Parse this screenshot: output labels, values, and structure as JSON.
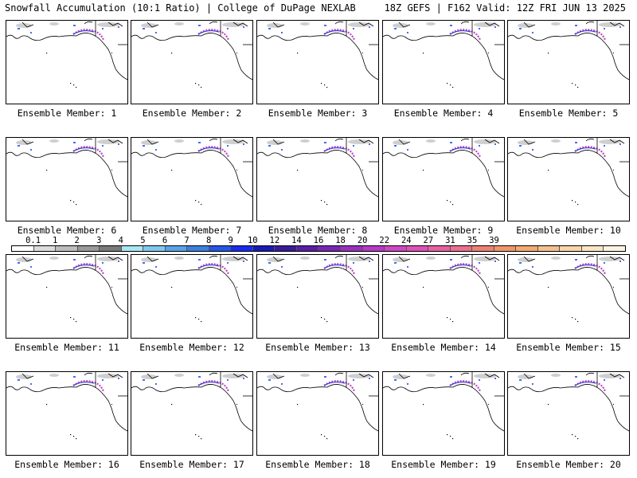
{
  "header": {
    "left": "Snowfall Accumulation (10:1 Ratio) | College of DuPage NEXLAB",
    "right": "18Z GEFS | F162 Valid: 12Z FRI JUN 13 2025"
  },
  "members": [
    {
      "label": "Ensemble Member: 1"
    },
    {
      "label": "Ensemble Member: 2"
    },
    {
      "label": "Ensemble Member: 3"
    },
    {
      "label": "Ensemble Member: 4"
    },
    {
      "label": "Ensemble Member: 5"
    },
    {
      "label": "Ensemble Member: 6"
    },
    {
      "label": "Ensemble Member: 7"
    },
    {
      "label": "Ensemble Member: 8"
    },
    {
      "label": "Ensemble Member: 9"
    },
    {
      "label": "Ensemble Member: 10"
    },
    {
      "label": "Ensemble Member: 11"
    },
    {
      "label": "Ensemble Member: 12"
    },
    {
      "label": "Ensemble Member: 13"
    },
    {
      "label": "Ensemble Member: 14"
    },
    {
      "label": "Ensemble Member: 15"
    },
    {
      "label": "Ensemble Member: 16"
    },
    {
      "label": "Ensemble Member: 17"
    },
    {
      "label": "Ensemble Member: 18"
    },
    {
      "label": "Ensemble Member: 19"
    },
    {
      "label": "Ensemble Member: 20"
    }
  ],
  "colorbar": {
    "labels": [
      "0.1",
      "1",
      "2",
      "3",
      "4",
      "5",
      "6",
      "7",
      "8",
      "9",
      "10",
      "12",
      "14",
      "16",
      "18",
      "20",
      "22",
      "24",
      "27",
      "31",
      "35",
      "39"
    ],
    "colors": [
      "#ffffff",
      "#dcdcdc",
      "#bdbdbd",
      "#9a9a9a",
      "#7a7a7a",
      "#a8e6f5",
      "#7fc8f0",
      "#5aa2ea",
      "#3c7fe0",
      "#2457e8",
      "#1a2cf0",
      "#1a1ab4",
      "#3a1a9c",
      "#5a1ea8",
      "#7a26b4",
      "#9a30c0",
      "#b83ac8",
      "#d046c4",
      "#e050b8",
      "#e860a4",
      "#ef6e8e",
      "#f08074",
      "#f2946a",
      "#f4aa72",
      "#f6c08c",
      "#f8d4a8",
      "#fae4c4",
      "#fcf2e0"
    ]
  }
}
